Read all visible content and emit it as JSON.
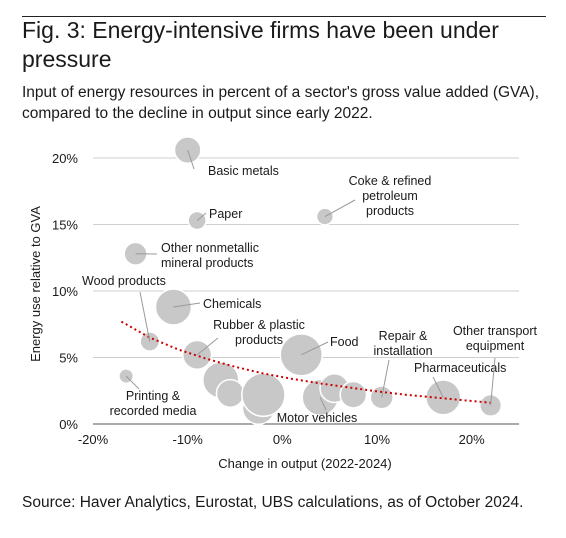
{
  "title": "Fig. 3: Energy-intensive firms have been under pressure",
  "subtitle": "Input of energy resources in percent of a sector's gross value added (GVA), compared to the decline in output since early 2022.",
  "source": "Source: Haver Analytics, Eurostat, UBS calculations, as of October 2024.",
  "chart_data": {
    "type": "scatter",
    "xlabel": "Change in output (2022-2024)",
    "ylabel": "Energy use relative to GVA",
    "xlim": [
      -20,
      25
    ],
    "ylim": [
      0,
      20
    ],
    "x_ticks": [
      -20,
      -10,
      0,
      10,
      20
    ],
    "x_tick_labels": [
      "-20%",
      "-10%",
      "0%",
      "10%",
      "20%"
    ],
    "y_ticks": [
      0,
      5,
      10,
      15,
      20
    ],
    "y_tick_labels": [
      "0%",
      "5%",
      "10%",
      "15%",
      "20%"
    ],
    "grid": "horizontal",
    "colors": {
      "bubble": "#c8c8c8",
      "bubble_edge": "#ffffff",
      "grid": "#cfcfcf",
      "trend": "#cc0000"
    },
    "points": [
      {
        "label": "Basic metals",
        "x": -10,
        "y": 20.6,
        "size": 2.2
      },
      {
        "label": "Coke & refined petroleum products",
        "x": 4.5,
        "y": 15.6,
        "size": 1.4
      },
      {
        "label": "Paper",
        "x": -9,
        "y": 15.3,
        "size": 1.5
      },
      {
        "label": "Other nonmetallic mineral products",
        "x": -15.5,
        "y": 12.8,
        "size": 1.9
      },
      {
        "label": "Chemicals",
        "x": -11.5,
        "y": 8.8,
        "size": 3.0
      },
      {
        "label": "Wood products",
        "x": -14,
        "y": 6.2,
        "size": 1.6
      },
      {
        "label": "Rubber & plastic products",
        "x": -9,
        "y": 5.2,
        "size": 2.4
      },
      {
        "label": "Food",
        "x": 2,
        "y": 5.2,
        "size": 3.5
      },
      {
        "label": "Printing & recorded media",
        "x": -16.5,
        "y": 3.6,
        "size": 1.2
      },
      {
        "label": null,
        "x": -6.5,
        "y": 3.3,
        "size": 3.0
      },
      {
        "label": null,
        "x": -5.5,
        "y": 2.3,
        "size": 2.3
      },
      {
        "label": null,
        "x": -2.5,
        "y": 1.2,
        "size": 2.7
      },
      {
        "label": null,
        "x": -2,
        "y": 2.2,
        "size": 3.6
      },
      {
        "label": "Motor vehicles",
        "x": 4,
        "y": 2.0,
        "size": 3.0
      },
      {
        "label": null,
        "x": 5.5,
        "y": 2.7,
        "size": 2.4
      },
      {
        "label": null,
        "x": 7.5,
        "y": 2.2,
        "size": 2.2
      },
      {
        "label": "Repair & installation",
        "x": 10.5,
        "y": 2.0,
        "size": 1.9
      },
      {
        "label": "Pharmaceuticals",
        "x": 17,
        "y": 2.0,
        "size": 2.9
      },
      {
        "label": "Other transport equipment",
        "x": 22,
        "y": 1.4,
        "size": 1.8
      }
    ],
    "trendline": {
      "type": "exponential",
      "x": [
        -17,
        -14,
        -11,
        -8,
        -5,
        -2,
        1,
        4,
        7,
        10,
        13,
        16,
        19,
        22
      ],
      "y": [
        7.7,
        6.5,
        5.6,
        4.9,
        4.3,
        3.8,
        3.4,
        3.05,
        2.75,
        2.45,
        2.2,
        2.0,
        1.8,
        1.6
      ]
    }
  }
}
